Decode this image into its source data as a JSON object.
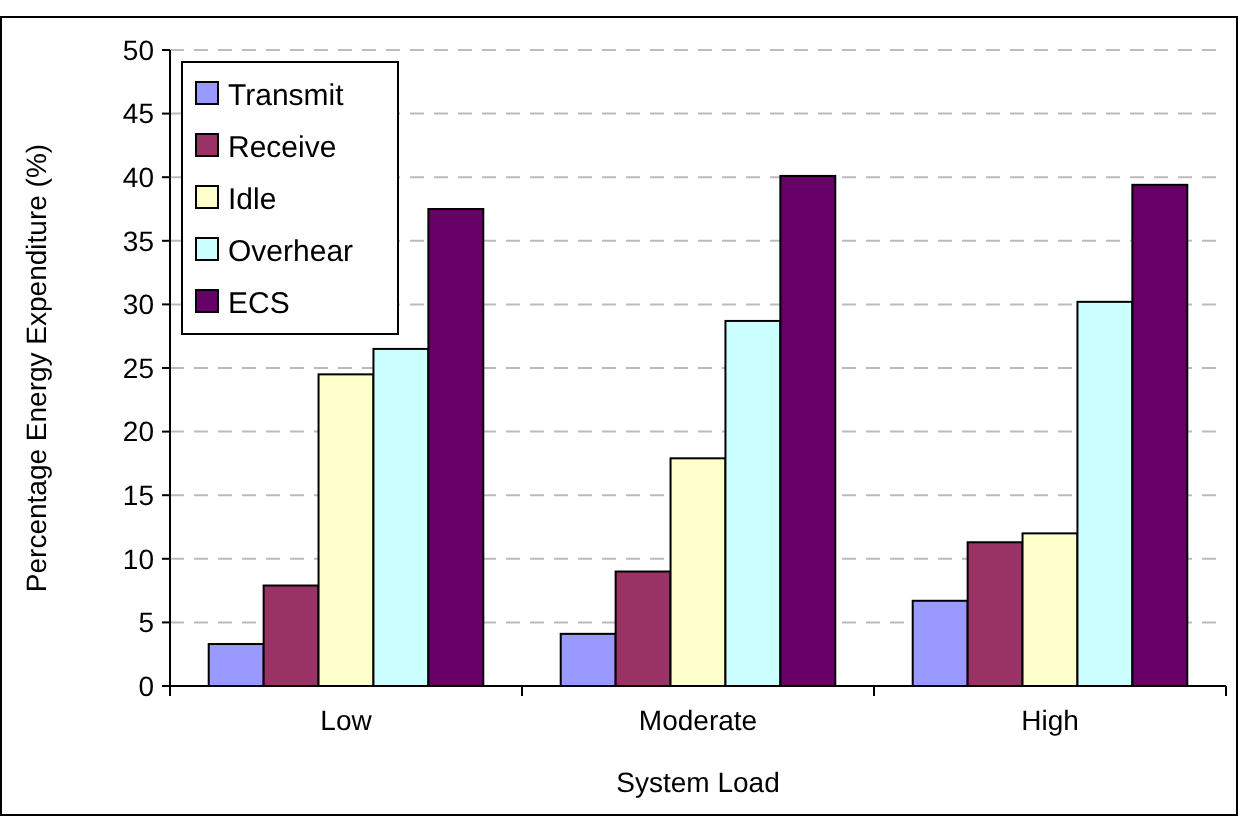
{
  "chart_data": {
    "type": "bar",
    "xlabel": "System Load",
    "ylabel": "Percentage Energy Expenditure (%)",
    "categories": [
      "Low",
      "Moderate",
      "High"
    ],
    "series": [
      {
        "name": "Transmit",
        "color": "#9999ff",
        "values": [
          3.3,
          4.1,
          6.7
        ]
      },
      {
        "name": "Receive",
        "color": "#993366",
        "values": [
          7.9,
          9.0,
          11.3
        ]
      },
      {
        "name": "Idle",
        "color": "#ffffcc",
        "values": [
          24.5,
          17.9,
          12.0
        ]
      },
      {
        "name": "Overhear",
        "color": "#ccffff",
        "values": [
          26.5,
          28.7,
          30.2
        ]
      },
      {
        "name": "ECS",
        "color": "#660066",
        "values": [
          37.5,
          40.1,
          39.4
        ]
      }
    ],
    "ylim": [
      0,
      50
    ],
    "yticks": [
      0,
      5,
      10,
      15,
      20,
      25,
      30,
      35,
      40,
      45,
      50
    ],
    "grid": "y",
    "legend": "top left"
  }
}
